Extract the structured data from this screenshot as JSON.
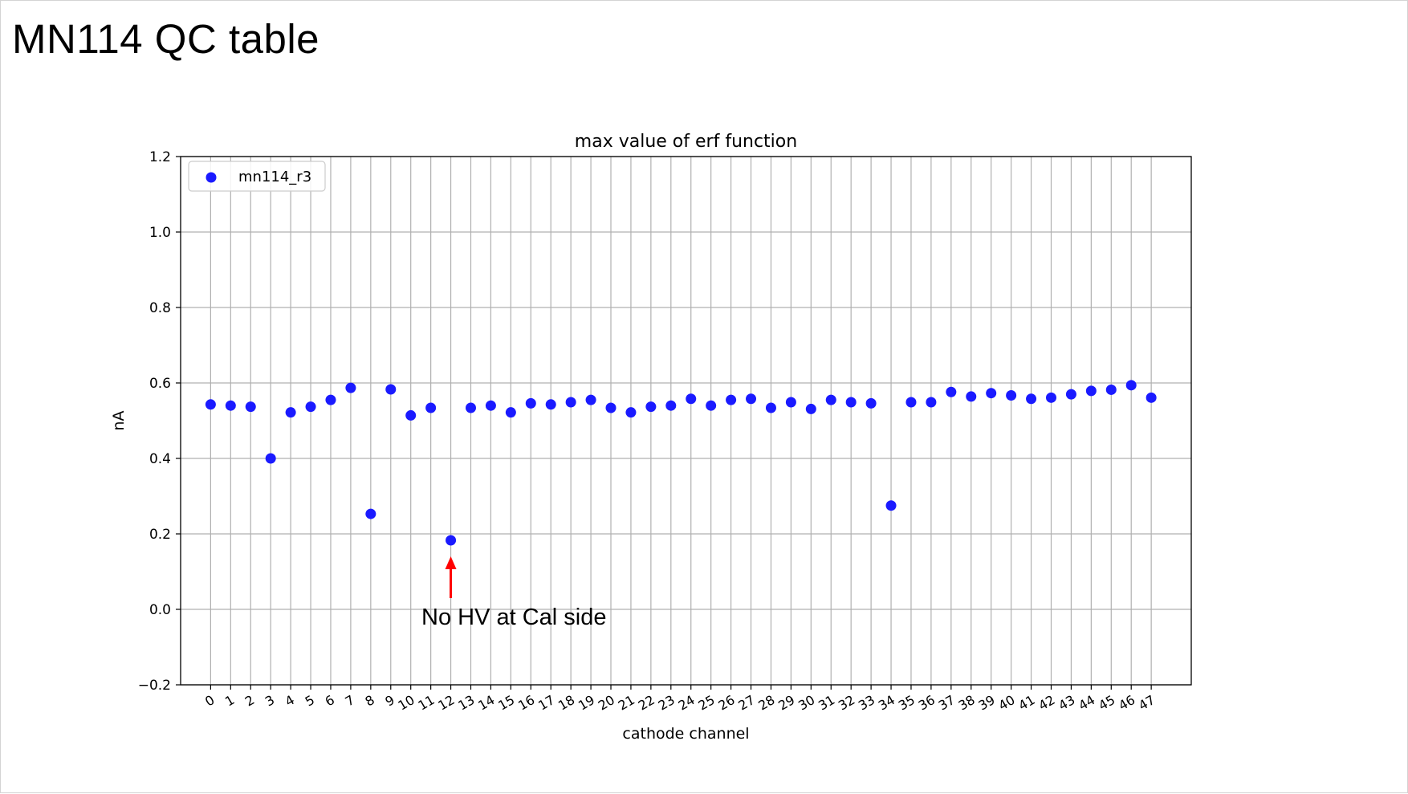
{
  "slide": {
    "title": "MN114 QC table"
  },
  "chart_data": {
    "type": "scatter",
    "title": "max value of erf function",
    "xlabel": "cathode channel",
    "ylabel": "nA",
    "ylim": [
      -0.2,
      1.2
    ],
    "yticks": [
      -0.2,
      0.0,
      0.2,
      0.4,
      0.6,
      0.8,
      1.0,
      1.2
    ],
    "ytick_labels": [
      "−0.2",
      "0.0",
      "0.2",
      "0.4",
      "0.6",
      "0.8",
      "1.0",
      "1.2"
    ],
    "xlim": [
      -1.5,
      49.0
    ],
    "x": [
      0,
      1,
      2,
      3,
      4,
      5,
      6,
      7,
      8,
      9,
      10,
      11,
      12,
      13,
      14,
      15,
      16,
      17,
      18,
      19,
      20,
      21,
      22,
      23,
      24,
      25,
      26,
      27,
      28,
      29,
      30,
      31,
      32,
      33,
      34,
      35,
      36,
      37,
      38,
      39,
      40,
      41,
      42,
      43,
      44,
      45,
      46,
      47
    ],
    "xtick_labels": [
      "0",
      "1",
      "2",
      "3",
      "4",
      "5",
      "6",
      "7",
      "8",
      "9",
      "10",
      "11",
      "12",
      "13",
      "14",
      "15",
      "16",
      "17",
      "18",
      "19",
      "20",
      "21",
      "22",
      "23",
      "24",
      "25",
      "26",
      "27",
      "28",
      "29",
      "30",
      "31",
      "32",
      "33",
      "34",
      "35",
      "36",
      "37",
      "38",
      "39",
      "40",
      "41",
      "42",
      "43",
      "44",
      "45",
      "46",
      "47"
    ],
    "grid": true,
    "legend_position": "top-left",
    "series": [
      {
        "name": "mn114_r3",
        "color": "#1a1aff",
        "values": [
          0.543,
          0.54,
          0.537,
          0.4,
          0.522,
          0.537,
          0.555,
          0.587,
          0.253,
          0.583,
          0.514,
          0.534,
          0.183,
          0.534,
          0.54,
          0.522,
          0.546,
          0.543,
          0.549,
          0.555,
          0.534,
          0.522,
          0.537,
          0.54,
          0.558,
          0.54,
          0.555,
          0.558,
          0.534,
          0.549,
          0.531,
          0.555,
          0.549,
          0.546,
          0.275,
          0.549,
          0.549,
          0.576,
          0.564,
          0.573,
          0.567,
          0.558,
          0.561,
          0.57,
          0.579,
          0.582,
          0.594,
          0.561
        ]
      }
    ],
    "annotation": {
      "text": "No HV at Cal side",
      "target_x": 12,
      "arrow_color": "#ff0000"
    }
  }
}
